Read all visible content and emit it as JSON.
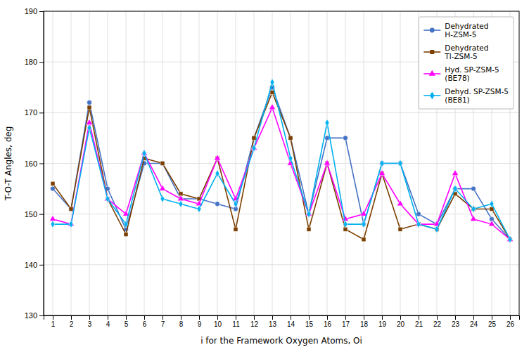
{
  "chart_data": {
    "type": "line",
    "x": [
      1,
      2,
      3,
      4,
      5,
      6,
      7,
      8,
      9,
      10,
      11,
      12,
      13,
      14,
      15,
      16,
      17,
      18,
      19,
      20,
      21,
      22,
      23,
      24,
      25,
      26
    ],
    "series": [
      {
        "name": "Dehydrated\nH-ZSM-5",
        "color": "#4472C4",
        "marker": "circle",
        "line_style": "solid",
        "values": [
          155,
          151,
          172,
          155,
          147,
          160,
          160,
          153,
          153,
          152,
          151,
          165,
          175,
          165,
          150,
          165,
          165,
          148,
          160,
          160,
          150,
          148,
          155,
          155,
          149,
          145
        ]
      },
      {
        "name": "Dehydrated\nTl-ZSM-5",
        "color": "#7B3F00",
        "marker": "square",
        "line_style": "solid",
        "values": [
          156,
          151,
          171,
          153,
          146,
          161,
          160,
          154,
          153,
          161,
          147,
          165,
          174,
          165,
          147,
          160,
          147,
          145,
          158,
          147,
          148,
          147,
          154,
          151,
          151,
          145
        ]
      },
      {
        "name": "Hyd. SP-ZSM-5\n(BE78)",
        "color": "#FF00FF",
        "marker": "triangle",
        "line_style": "solid",
        "values": [
          149,
          148,
          168,
          153,
          150,
          162,
          155,
          153,
          152,
          161,
          153,
          163,
          171,
          160,
          150,
          160,
          149,
          150,
          158,
          152,
          148,
          148,
          158,
          149,
          148,
          145
        ]
      },
      {
        "name": "Dehyd. SP-ZSM-5\n(BE81)",
        "color": "#00B0F0",
        "marker": "diamond",
        "line_style": "solid",
        "values": [
          148,
          148,
          167,
          153,
          148,
          162,
          153,
          152,
          151,
          158,
          152,
          163,
          176,
          161,
          150,
          168,
          148,
          148,
          160,
          160,
          148,
          147,
          155,
          151,
          152,
          145
        ]
      }
    ],
    "xlim": [
      0.5,
      26.5
    ],
    "xticks": [
      1,
      2,
      3,
      4,
      5,
      6,
      7,
      8,
      9,
      10,
      11,
      12,
      13,
      14,
      15,
      16,
      17,
      18,
      19,
      20,
      21,
      22,
      23,
      24,
      25,
      26
    ],
    "ylim": [
      130,
      190
    ],
    "yticks": [
      130,
      140,
      150,
      160,
      170,
      180,
      190
    ],
    "xlabel": "i for the Framework Oxygen Atoms, Oi",
    "ylabel": "T-O-T Angles, deg",
    "grid": true,
    "legend": "upper right"
  }
}
